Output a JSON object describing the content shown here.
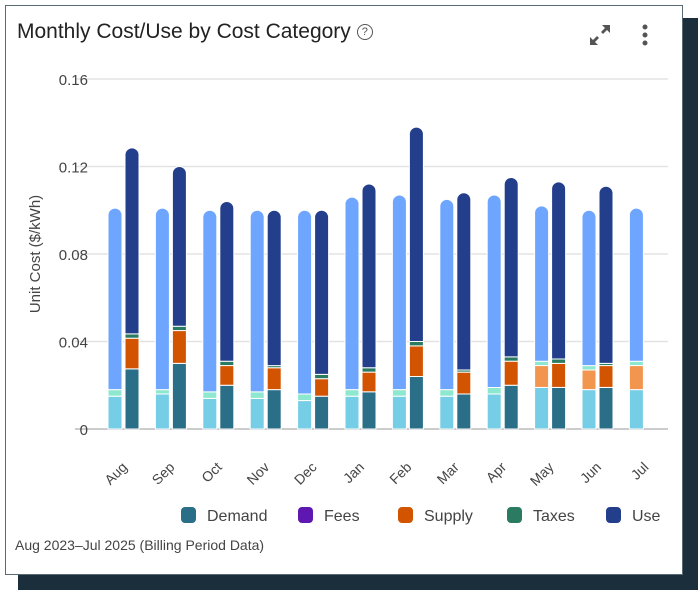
{
  "header": {
    "title": "Monthly Cost/Use by Cost Category",
    "help_icon": "question-circle-icon",
    "expand_icon": "expand-icon",
    "menu_icon": "kebab-menu-icon"
  },
  "footer": {
    "period": "Aug 2023–Jul 2025 (Billing Period Data)"
  },
  "chart_data": {
    "type": "bar",
    "stacked": true,
    "grouped": true,
    "ylabel": "Unit Cost ($/kWh)",
    "ylim": [
      0,
      0.16
    ],
    "yticks": [
      "0",
      "0.04",
      "0.08",
      "0.12",
      "0.16"
    ],
    "grid": true,
    "legend_placement": "bottom-right",
    "categories": [
      "Aug",
      "Sep",
      "Oct",
      "Nov",
      "Dec",
      "Jan",
      "Feb",
      "Mar",
      "Apr",
      "May",
      "Jun",
      "Jul"
    ],
    "legend": [
      "Demand",
      "Fees",
      "Supply",
      "Taxes",
      "Use"
    ],
    "colors": {
      "current": {
        "Demand": "#2b6e87",
        "Fees": "#5e17b0",
        "Supply": "#d35400",
        "Taxes": "#2b7a62",
        "Use": "#233e8b"
      },
      "previous": {
        "Demand": "#76cde6",
        "Fees": "#c9b3ee",
        "Supply": "#f2954f",
        "Taxes": "#8ee8d0",
        "Use": "#6ea6ff"
      }
    },
    "groups": [
      {
        "period": "previous",
        "series": {
          "Demand": [
            0.015,
            0.016,
            0.014,
            0.014,
            0.013,
            0.015,
            0.015,
            0.015,
            0.016,
            0.019,
            0.018,
            0.018
          ],
          "Fees": [
            0,
            0,
            0,
            0,
            0,
            0,
            0,
            0,
            0,
            0,
            0,
            0
          ],
          "Supply": [
            0,
            0,
            0,
            0,
            0,
            0,
            0,
            0,
            0,
            0.01,
            0.009,
            0.011
          ],
          "Taxes": [
            0.003,
            0.002,
            0.003,
            0.003,
            0.003,
            0.003,
            0.003,
            0.003,
            0.003,
            0.002,
            0.002,
            0.002
          ],
          "Use": [
            0.083,
            0.083,
            0.083,
            0.083,
            0.084,
            0.088,
            0.089,
            0.087,
            0.088,
            0.071,
            0.071,
            0.07
          ]
        }
      },
      {
        "period": "current",
        "series": {
          "Demand": [
            0.0275,
            0.03,
            0.02,
            0.018,
            0.015,
            0.017,
            0.024,
            0.016,
            0.02,
            0.019,
            0.019,
            null
          ],
          "Fees": [
            0,
            0,
            0,
            0,
            0,
            0,
            0,
            0,
            0,
            0,
            0,
            null
          ],
          "Supply": [
            0.014,
            0.015,
            0.009,
            0.01,
            0.008,
            0.009,
            0.014,
            0.01,
            0.011,
            0.011,
            0.01,
            null
          ],
          "Taxes": [
            0.002,
            0.002,
            0.002,
            0.001,
            0.002,
            0.002,
            0.002,
            0.001,
            0.002,
            0.002,
            0.001,
            null
          ],
          "Use": [
            0.085,
            0.073,
            0.073,
            0.071,
            0.075,
            0.084,
            0.098,
            0.081,
            0.082,
            0.081,
            0.081,
            null
          ]
        }
      }
    ]
  }
}
